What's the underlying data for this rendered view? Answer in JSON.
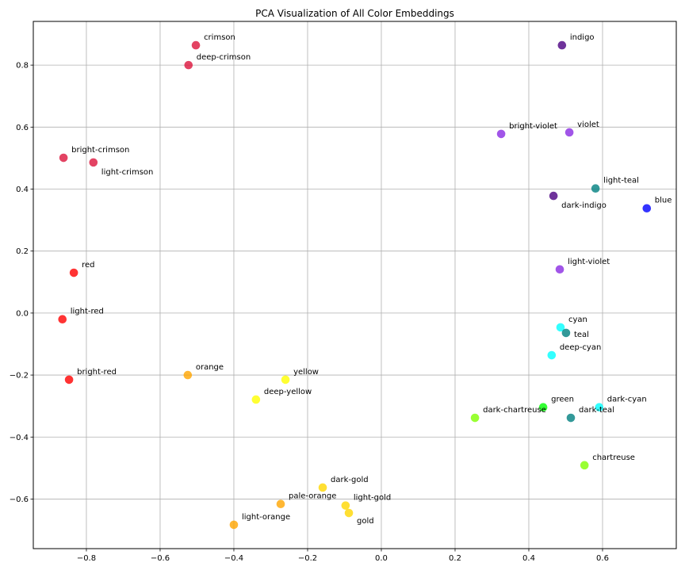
{
  "chart_data": {
    "type": "scatter",
    "title": "PCA Visualization of All Color Embeddings",
    "xlabel": "",
    "ylabel": "",
    "xlim": [
      -0.944,
      0.8
    ],
    "ylim": [
      -0.76,
      0.941
    ],
    "grid": true,
    "xticks": [
      -0.8,
      -0.6,
      -0.4,
      -0.2,
      0.0,
      0.2,
      0.4,
      0.6
    ],
    "xtick_labels": [
      "−0.8",
      "−0.6",
      "−0.4",
      "−0.2",
      "0.0",
      "0.2",
      "0.4",
      "0.6"
    ],
    "yticks": [
      0.8,
      0.6,
      0.4,
      0.2,
      0.0,
      -0.2,
      -0.4,
      -0.6
    ],
    "ytick_labels": [
      "0.8",
      "0.6",
      "0.4",
      "0.2",
      "0.0",
      "−0.2",
      "−0.4",
      "−0.6"
    ],
    "alpha": 0.8,
    "points": [
      {
        "label": "crimson",
        "x": -0.503,
        "y": 0.864,
        "color": "#DC143C"
      },
      {
        "label": "deep-crimson",
        "x": -0.523,
        "y": 0.8,
        "color": "#DC143C"
      },
      {
        "label": "bright-crimson",
        "x": -0.862,
        "y": 0.501,
        "color": "#DC143C"
      },
      {
        "label": "light-crimson",
        "x": -0.781,
        "y": 0.486,
        "color": "#DC143C"
      },
      {
        "label": "red",
        "x": -0.834,
        "y": 0.13,
        "color": "#FF0000"
      },
      {
        "label": "light-red",
        "x": -0.865,
        "y": -0.02,
        "color": "#FF0000"
      },
      {
        "label": "bright-red",
        "x": -0.847,
        "y": -0.215,
        "color": "#FF0000"
      },
      {
        "label": "orange",
        "x": -0.525,
        "y": -0.2,
        "color": "#FFA500"
      },
      {
        "label": "yellow",
        "x": -0.26,
        "y": -0.215,
        "color": "#FFFF00"
      },
      {
        "label": "deep-yellow",
        "x": -0.34,
        "y": -0.279,
        "color": "#FFFF00"
      },
      {
        "label": "dark-gold",
        "x": -0.159,
        "y": -0.563,
        "color": "#FFD700"
      },
      {
        "label": "pale-orange",
        "x": -0.273,
        "y": -0.616,
        "color": "#FFA500"
      },
      {
        "label": "light-orange",
        "x": -0.4,
        "y": -0.683,
        "color": "#FFA500"
      },
      {
        "label": "light-gold",
        "x": -0.097,
        "y": -0.621,
        "color": "#FFD700"
      },
      {
        "label": "gold",
        "x": -0.088,
        "y": -0.645,
        "color": "#FFD700"
      },
      {
        "label": "indigo",
        "x": 0.49,
        "y": 0.864,
        "color": "#4B0082"
      },
      {
        "label": "bright-violet",
        "x": 0.325,
        "y": 0.578,
        "color": "#8A2BE2"
      },
      {
        "label": "violet",
        "x": 0.51,
        "y": 0.583,
        "color": "#8A2BE2"
      },
      {
        "label": "dark-indigo",
        "x": 0.467,
        "y": 0.378,
        "color": "#4B0082"
      },
      {
        "label": "light-teal",
        "x": 0.581,
        "y": 0.402,
        "color": "#008080"
      },
      {
        "label": "blue",
        "x": 0.72,
        "y": 0.338,
        "color": "#0000FF"
      },
      {
        "label": "light-violet",
        "x": 0.484,
        "y": 0.141,
        "color": "#8A2BE2"
      },
      {
        "label": "cyan",
        "x": 0.486,
        "y": -0.046,
        "color": "#00FFFF"
      },
      {
        "label": "teal",
        "x": 0.501,
        "y": -0.064,
        "color": "#008080"
      },
      {
        "label": "deep-cyan",
        "x": 0.462,
        "y": -0.136,
        "color": "#00FFFF"
      },
      {
        "label": "green",
        "x": 0.439,
        "y": -0.304,
        "color": "#00FF00"
      },
      {
        "label": "dark-chartreuse",
        "x": 0.254,
        "y": -0.338,
        "color": "#7FFF00"
      },
      {
        "label": "dark-teal",
        "x": 0.514,
        "y": -0.338,
        "color": "#008080"
      },
      {
        "label": "dark-cyan",
        "x": 0.591,
        "y": -0.304,
        "color": "#00FFFF"
      },
      {
        "label": "chartreuse",
        "x": 0.551,
        "y": -0.491,
        "color": "#7FFF00"
      }
    ]
  }
}
